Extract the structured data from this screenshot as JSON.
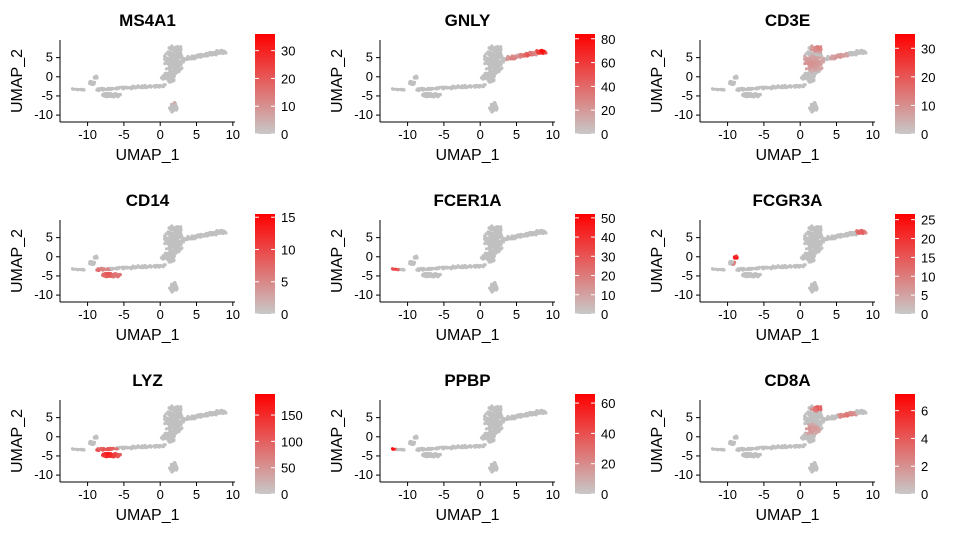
{
  "figure": {
    "xlabel": "UMAP_1",
    "ylabel": "UMAP_2",
    "xticks": [
      -10,
      -5,
      0,
      5,
      10
    ],
    "yticks": [
      5,
      0,
      -5,
      -10
    ],
    "xlim": [
      -13.8,
      10.3
    ],
    "ylim": [
      -11.8,
      9.6
    ],
    "low_color": "#c8c8c8",
    "high_color": "#ff0000",
    "cell_color": "#c0c0c0"
  },
  "chart_data": [
    {
      "type": "scatter",
      "title": "MS4A1",
      "legend_max": 36,
      "legend_ticks": [
        0,
        10,
        20,
        30
      ],
      "hotspots": [
        {
          "x": 1.8,
          "y": -6.5,
          "r": 0.8,
          "level": 0.15
        }
      ]
    },
    {
      "type": "scatter",
      "title": "GNLY",
      "legend_max": 84,
      "legend_ticks": [
        0,
        20,
        40,
        60,
        80
      ],
      "hotspots": [
        {
          "x": 8.5,
          "y": 6.6,
          "r": 0.9,
          "level": 1.0
        },
        {
          "x": 6.5,
          "y": 5.6,
          "r": 1.2,
          "level": 0.6
        },
        {
          "x": 4.5,
          "y": 4.8,
          "r": 1.0,
          "level": 0.4
        }
      ]
    },
    {
      "type": "scatter",
      "title": "CD3E",
      "legend_max": 35,
      "legend_ticks": [
        0,
        10,
        20,
        30
      ],
      "hotspots": [
        {
          "x": 1.5,
          "y": 3.5,
          "r": 2.2,
          "level": 0.3
        },
        {
          "x": 2.5,
          "y": 7.5,
          "r": 1.2,
          "level": 0.4
        },
        {
          "x": 5.5,
          "y": 5.0,
          "r": 1.5,
          "level": 0.3
        }
      ]
    },
    {
      "type": "scatter",
      "title": "CD14",
      "legend_max": 15.5,
      "legend_ticks": [
        0,
        5,
        10,
        15
      ],
      "hotspots": [
        {
          "x": -7.2,
          "y": -4.6,
          "r": 1.5,
          "level": 0.6
        },
        {
          "x": -5.5,
          "y": -5.2,
          "r": 1.3,
          "level": 0.5
        },
        {
          "x": -8.5,
          "y": -3.6,
          "r": 1.0,
          "level": 0.5
        }
      ]
    },
    {
      "type": "scatter",
      "title": "FCER1A",
      "legend_max": 52,
      "legend_ticks": [
        0,
        10,
        20,
        30,
        40,
        50
      ],
      "hotspots": [
        {
          "x": -11.7,
          "y": -3.2,
          "r": 0.6,
          "level": 0.8
        }
      ]
    },
    {
      "type": "scatter",
      "title": "FCGR3A",
      "legend_max": 26.5,
      "legend_ticks": [
        0,
        5,
        10,
        15,
        20,
        25
      ],
      "hotspots": [
        {
          "x": -8.8,
          "y": -0.2,
          "r": 0.8,
          "level": 1.0
        },
        {
          "x": -8.5,
          "y": -1.6,
          "r": 0.8,
          "level": 0.6
        },
        {
          "x": 8.3,
          "y": 6.4,
          "r": 0.8,
          "level": 0.6
        }
      ]
    },
    {
      "type": "scatter",
      "title": "LYZ",
      "legend_max": 190,
      "legend_ticks": [
        0,
        50,
        100,
        150
      ],
      "hotspots": [
        {
          "x": -7.2,
          "y": -4.6,
          "r": 2.0,
          "level": 0.9
        },
        {
          "x": -5.0,
          "y": -5.2,
          "r": 1.6,
          "level": 0.7
        },
        {
          "x": -9.0,
          "y": -3.6,
          "r": 1.0,
          "level": 0.8
        }
      ]
    },
    {
      "type": "scatter",
      "title": "PPBP",
      "legend_max": 66,
      "legend_ticks": [
        0,
        20,
        40,
        60
      ],
      "hotspots": [
        {
          "x": -12.0,
          "y": -3.2,
          "r": 0.5,
          "level": 1.0
        }
      ]
    },
    {
      "type": "scatter",
      "title": "CD8A",
      "legend_max": 7.2,
      "legend_ticks": [
        0,
        2,
        4,
        6
      ],
      "hotspots": [
        {
          "x": 2.5,
          "y": 7.5,
          "r": 1.0,
          "level": 0.6
        },
        {
          "x": 6.5,
          "y": 5.2,
          "r": 1.4,
          "level": 0.5
        },
        {
          "x": 1.5,
          "y": 2.0,
          "r": 1.5,
          "level": 0.3
        }
      ]
    }
  ]
}
